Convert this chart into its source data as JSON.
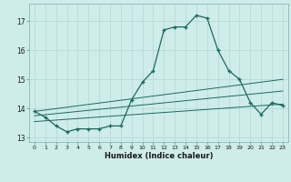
{
  "xlabel": "Humidex (Indice chaleur)",
  "bg_color": "#ceecea",
  "grid_color": "#b8dbd8",
  "line_color": "#1a6b5a",
  "xlim": [
    -0.5,
    23.5
  ],
  "ylim": [
    12.85,
    17.6
  ],
  "yticks": [
    13,
    14,
    15,
    16,
    17
  ],
  "xtick_values": [
    0,
    1,
    2,
    3,
    4,
    5,
    6,
    7,
    8,
    9,
    10,
    11,
    12,
    13,
    14,
    15,
    16,
    17,
    18,
    19,
    20,
    21,
    22,
    23
  ],
  "xtick_labels": [
    "0",
    "1",
    "2",
    "3",
    "4",
    "5",
    "6",
    "7",
    "8",
    "9",
    "10",
    "11",
    "12",
    "13",
    "14",
    "15",
    "16",
    "17",
    "18",
    "19",
    "20",
    "21",
    "22",
    "23"
  ],
  "series_main": {
    "x": [
      0,
      1,
      2,
      3,
      4,
      5,
      6,
      7,
      8,
      9,
      10,
      11,
      12,
      13,
      14,
      15,
      16,
      17,
      18,
      19,
      20,
      21,
      22,
      23
    ],
    "y": [
      13.9,
      13.7,
      13.4,
      13.2,
      13.3,
      13.3,
      13.3,
      13.4,
      13.4,
      14.3,
      14.9,
      15.3,
      16.7,
      16.8,
      16.8,
      17.2,
      17.1,
      16.0,
      15.3,
      15.0,
      14.2,
      13.8,
      14.2,
      14.1
    ]
  },
  "line1": {
    "x": [
      0,
      23
    ],
    "y": [
      13.9,
      15.0
    ]
  },
  "line2": {
    "x": [
      0,
      23
    ],
    "y": [
      13.75,
      14.6
    ]
  },
  "line3": {
    "x": [
      0,
      23
    ],
    "y": [
      13.55,
      14.15
    ]
  }
}
